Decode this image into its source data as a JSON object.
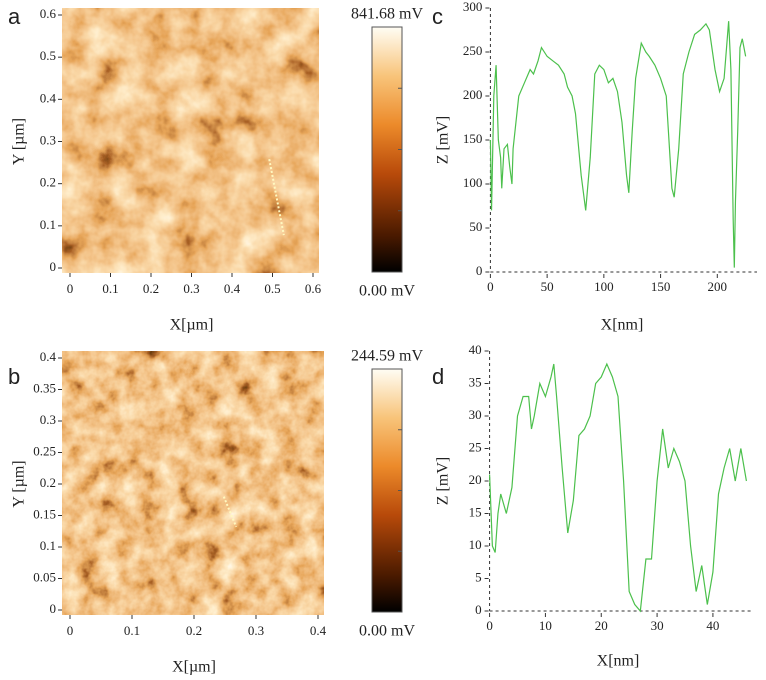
{
  "chart_data": [
    {
      "type": "image",
      "panel": "a",
      "xlabel": "X[µm]",
      "ylabel": "Y [µm]",
      "xlim": [
        0,
        0.6
      ],
      "ylim": [
        0,
        0.6
      ],
      "xticks": [
        0,
        0.1,
        0.2,
        0.3,
        0.4,
        0.5,
        0.6
      ],
      "yticks": [
        0,
        0.1,
        0.2,
        0.3,
        0.4,
        0.5,
        0.6
      ],
      "colorbar_lim": [
        0,
        841.68
      ],
      "colorbar_ticks": [
        {
          "value": 841.68,
          "label": "841.68 mV"
        },
        {
          "value": 0,
          "label": "0.00 mV"
        }
      ]
    },
    {
      "type": "image",
      "panel": "b",
      "xlabel": "X[µm]",
      "ylabel": "Y [µm]",
      "xlim": [
        0,
        0.4
      ],
      "ylim": [
        0,
        0.4
      ],
      "xticks": [
        0,
        0.1,
        0.2,
        0.3,
        0.4
      ],
      "yticks": [
        0,
        0.05,
        0.1,
        0.15,
        0.2,
        0.25,
        0.3,
        0.35,
        0.4
      ],
      "colorbar_lim": [
        0,
        244.59
      ],
      "colorbar_ticks": [
        {
          "value": 244.59,
          "label": "244.59 mV"
        },
        {
          "value": 0,
          "label": "0.00 mV"
        }
      ]
    },
    {
      "type": "line",
      "panel": "c",
      "xlabel": "X[nm]",
      "ylabel": "Z [mV]",
      "xlim": [
        -3,
        235
      ],
      "ylim": [
        0,
        300
      ],
      "xticks": [
        0,
        50,
        100,
        150,
        200
      ],
      "yticks": [
        0,
        50,
        100,
        150,
        200,
        250,
        300
      ],
      "color": "#4cc04c",
      "x": [
        0,
        1,
        3,
        5,
        7,
        9,
        10,
        12,
        15,
        17,
        19,
        20,
        25,
        30,
        35,
        38,
        42,
        45,
        50,
        55,
        60,
        65,
        68,
        72,
        75,
        80,
        84,
        88,
        92,
        96,
        100,
        104,
        108,
        112,
        116,
        120,
        122,
        125,
        128,
        133,
        137,
        140,
        145,
        150,
        155,
        160,
        162,
        166,
        170,
        175,
        180,
        185,
        190,
        193,
        198,
        202,
        206,
        210,
        212,
        214,
        215,
        216,
        218,
        220,
        222,
        225
      ],
      "values": [
        150,
        70,
        200,
        235,
        150,
        130,
        95,
        140,
        145,
        120,
        100,
        140,
        200,
        215,
        230,
        225,
        240,
        255,
        245,
        240,
        235,
        225,
        210,
        200,
        180,
        110,
        70,
        130,
        225,
        235,
        230,
        215,
        220,
        205,
        170,
        110,
        90,
        160,
        220,
        260,
        250,
        245,
        235,
        220,
        200,
        95,
        85,
        140,
        225,
        250,
        270,
        275,
        282,
        275,
        230,
        205,
        220,
        285,
        230,
        60,
        5,
        80,
        160,
        255,
        265,
        245
      ]
    },
    {
      "type": "line",
      "panel": "d",
      "xlabel": "X[nm]",
      "ylabel": "Z [mV]",
      "xlim": [
        -1,
        47
      ],
      "ylim": [
        0,
        40
      ],
      "xticks": [
        0,
        10,
        20,
        30,
        40
      ],
      "yticks": [
        0,
        5,
        10,
        15,
        20,
        25,
        30,
        35,
        40
      ],
      "color": "#4cc04c",
      "x": [
        0,
        0.5,
        1,
        1.5,
        2,
        3,
        4,
        5,
        6,
        7,
        7.5,
        8,
        9,
        10,
        11,
        11.5,
        12,
        13,
        14,
        15,
        16,
        17,
        18,
        19,
        20,
        21,
        22,
        23,
        24,
        25,
        26,
        27,
        28,
        29,
        30,
        31,
        32,
        33,
        34,
        35,
        36,
        37,
        38,
        39,
        40,
        41,
        42,
        43,
        44,
        45,
        46
      ],
      "values": [
        21,
        10,
        9,
        15,
        18,
        15,
        19,
        30,
        33,
        33,
        28,
        30,
        35,
        33,
        36,
        38,
        33,
        22,
        12,
        17,
        27,
        28,
        30,
        35,
        36,
        38,
        36,
        33,
        20,
        3,
        1,
        0,
        8,
        8,
        20,
        28,
        22,
        25,
        23,
        20,
        10,
        3,
        7,
        1,
        6,
        18,
        22,
        25,
        20,
        25,
        20
      ]
    }
  ]
}
